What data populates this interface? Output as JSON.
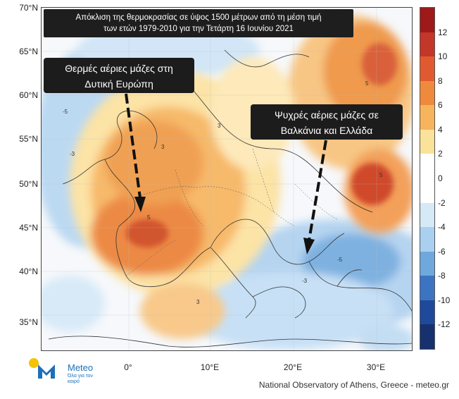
{
  "title": {
    "line1": "Απόκλιση της θερμοκρασίας σε ύψος 1500 μέτρων από τη μέση τιμή",
    "line2": "των ετών 1979-2010 για την Τετάρτη 16 Ιουνίου 2021"
  },
  "callouts": {
    "west": {
      "line1": "Θερμές αέριες μάζες στη",
      "line2": "Δυτική Ευρώπη"
    },
    "east": {
      "line1": "Ψυχρές αέριες μάζες σε",
      "line2": "Βαλκάνια και Ελλάδα"
    }
  },
  "latitude_labels": [
    "70°N",
    "65°N",
    "60°N",
    "55°N",
    "50°N",
    "45°N",
    "40°N",
    "35°N"
  ],
  "longitude_labels": [
    "0°",
    "10°E",
    "20°E",
    "30°E"
  ],
  "colorbar": {
    "labels": [
      "12",
      "10",
      "8",
      "6",
      "4",
      "2",
      "0",
      "-2",
      "-4",
      "-6",
      "-8",
      "-10",
      "-12"
    ],
    "colors": [
      "#9e1a1a",
      "#c4352a",
      "#e15a2f",
      "#ef8a3c",
      "#f6b45d",
      "#fbe29a",
      "#ffffff",
      "#ffffff",
      "#d6e9f7",
      "#a9d0ee",
      "#6fa8dc",
      "#3d74c1",
      "#1f4a9c",
      "#17306e"
    ]
  },
  "contour_labels": [
    "3",
    "5",
    "-3",
    "-5",
    "3",
    "5",
    "-3",
    "-5",
    "5",
    "3"
  ],
  "logo": {
    "name": "Meteo",
    "tagline": "Όλα για τον καιρό"
  },
  "credit": "National Observatory of Athens, Greece - meteo.gr"
}
